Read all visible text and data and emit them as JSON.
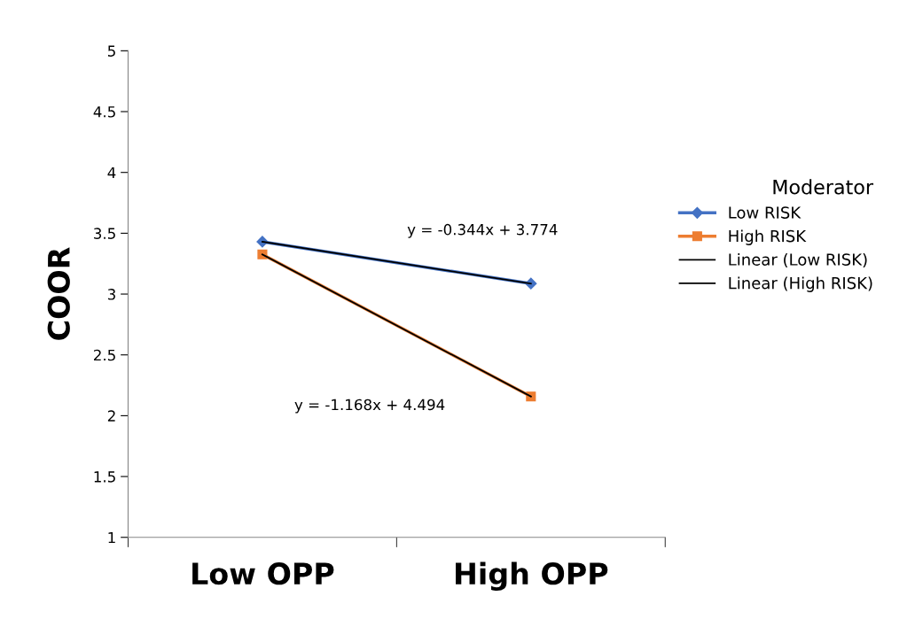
{
  "chart_data": {
    "type": "line",
    "ylabel": "COOR",
    "categories": [
      "Low OPP",
      "High OPP"
    ],
    "series": [
      {
        "name": "Low RISK",
        "color": "#4472c4",
        "values": [
          3.43,
          3.086
        ],
        "marker": "diamond"
      },
      {
        "name": "High RISK",
        "color": "#ed7d31",
        "values": [
          3.326,
          2.158
        ],
        "marker": "square"
      },
      {
        "name": "Linear (Low RISK)",
        "color": "#000000",
        "values": [
          3.43,
          3.086
        ],
        "marker": "none"
      },
      {
        "name": "Linear (High RISK)",
        "color": "#000000",
        "values": [
          3.326,
          2.158
        ],
        "marker": "none"
      }
    ],
    "ylim": [
      1,
      5
    ],
    "yticks": [
      1,
      1.5,
      2,
      2.5,
      3,
      3.5,
      4,
      4.5,
      5
    ],
    "annotations": [
      "y = -0.344x + 3.774",
      "y = -1.168x + 4.494"
    ],
    "legend_title": "Moderator",
    "legend": "right",
    "grid": false,
    "line_style": "solid"
  }
}
